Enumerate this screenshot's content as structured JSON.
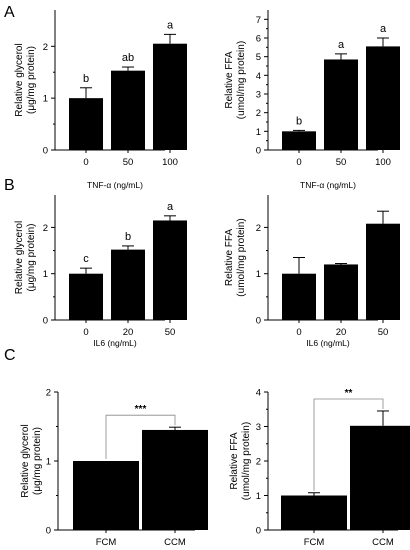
{
  "panels": [
    {
      "id": "panel-a",
      "label": "A"
    },
    {
      "id": "panel-b",
      "label": "B"
    },
    {
      "id": "panel-c",
      "label": "C"
    }
  ],
  "chart_data": [
    {
      "id": "a-left",
      "type": "bar",
      "panel": "A",
      "categories": [
        "0",
        "50",
        "100"
      ],
      "values": [
        1.0,
        1.53,
        2.05
      ],
      "errors": [
        0.2,
        0.07,
        0.18
      ],
      "annotations": [
        "b",
        "ab",
        "a"
      ],
      "xlabel": "TNF-α (ng/mL)",
      "ylabel_lines": [
        "Relative glycerol",
        "(μg/mg protein)"
      ],
      "ylim": [
        0,
        2.7
      ],
      "yticks": [
        0,
        1,
        2
      ],
      "grid": false,
      "legend": "none"
    },
    {
      "id": "a-right",
      "type": "bar",
      "panel": "A",
      "categories": [
        "0",
        "50",
        "100"
      ],
      "values": [
        1.0,
        4.85,
        5.55
      ],
      "errors": [
        0.05,
        0.3,
        0.45
      ],
      "annotations": [
        "b",
        "a",
        "a"
      ],
      "xlabel": "TNF-α (ng/mL)",
      "ylabel_lines": [
        "Relative FFA",
        "(umol/mg protein)"
      ],
      "ylim": [
        0,
        7.5
      ],
      "yticks": [
        0,
        1,
        2,
        3,
        4,
        5,
        6,
        7
      ],
      "grid": false,
      "legend": "none"
    },
    {
      "id": "b-left",
      "type": "bar",
      "panel": "B",
      "categories": [
        "0",
        "20",
        "50"
      ],
      "values": [
        1.0,
        1.52,
        2.15
      ],
      "errors": [
        0.12,
        0.08,
        0.1
      ],
      "annotations": [
        "c",
        "b",
        "a"
      ],
      "xlabel": "IL6 (ng/mL)",
      "ylabel_lines": [
        "Relative glycerol",
        "(μg/mg protein)"
      ],
      "ylim": [
        0,
        2.7
      ],
      "yticks": [
        0,
        1,
        2
      ],
      "grid": false,
      "legend": "none"
    },
    {
      "id": "b-right",
      "type": "bar",
      "panel": "B",
      "categories": [
        "0",
        "20",
        "50"
      ],
      "values": [
        1.0,
        1.2,
        2.08
      ],
      "errors": [
        0.35,
        0.02,
        0.27
      ],
      "annotations": [],
      "xlabel": "IL6 (ng/mL)",
      "ylabel_lines": [
        "Relative FFA",
        "(umol/mg protein)"
      ],
      "ylim": [
        0,
        2.7
      ],
      "yticks": [
        0,
        1,
        2
      ],
      "grid": false,
      "legend": "none"
    },
    {
      "id": "c-left",
      "type": "bar",
      "panel": "C",
      "categories": [
        "FCM",
        "CCM"
      ],
      "values": [
        1.0,
        1.45
      ],
      "errors": [
        0.0,
        0.04
      ],
      "annotations": [],
      "significance": "***",
      "xlabel": "",
      "ylabel_lines": [
        "Relative glycerol",
        "(μg/mg protein)"
      ],
      "ylim": [
        0,
        2
      ],
      "yticks": [
        0,
        1,
        2
      ],
      "grid": false,
      "legend": "none"
    },
    {
      "id": "c-right",
      "type": "bar",
      "panel": "C",
      "categories": [
        "FCM",
        "CCM"
      ],
      "values": [
        1.0,
        3.02
      ],
      "errors": [
        0.08,
        0.43
      ],
      "annotations": [],
      "significance": "**",
      "xlabel": "",
      "ylabel_lines": [
        "Relative FFA",
        "(umol/mg protein)"
      ],
      "ylim": [
        0,
        4
      ],
      "yticks": [
        0,
        1,
        2,
        3,
        4
      ],
      "grid": false,
      "legend": "none"
    }
  ]
}
